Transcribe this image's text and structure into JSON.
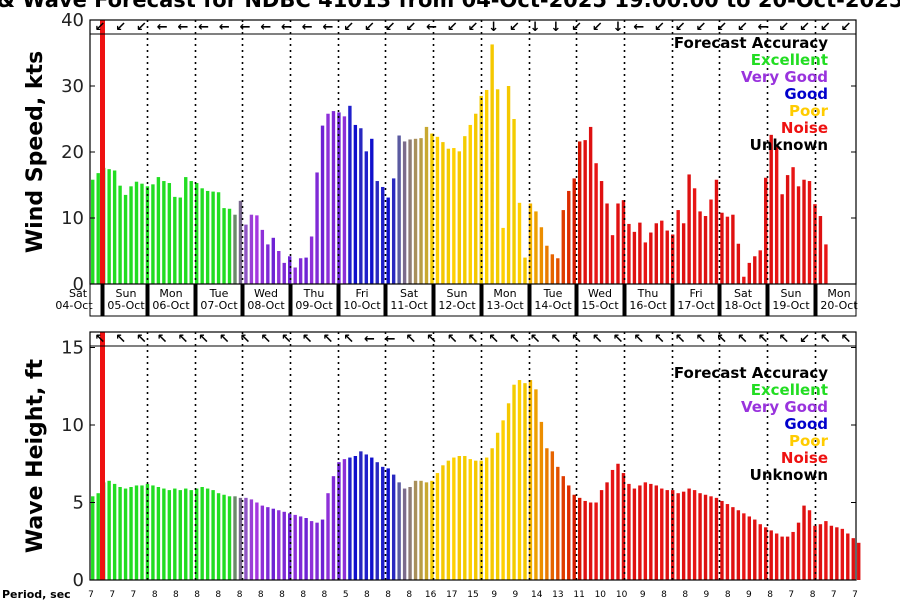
{
  "title": "& Wave Forecast for NDBC 41013 from 04-Oct-2025 19:00:00 to 20-Oct-2025",
  "accuracy_title": "Forecast Accuracy",
  "accuracy_legend": [
    {
      "label": "Excellent",
      "color": "#22dd22"
    },
    {
      "label": "Very Good",
      "color": "#9933dd"
    },
    {
      "label": "Good",
      "color": "#0000cc"
    },
    {
      "label": "Poor",
      "color": "#ffcc00"
    },
    {
      "label": "Noise",
      "color": "#ee1111"
    },
    {
      "label": "Unknown",
      "color": "#000000"
    }
  ],
  "period_label": "Period, sec",
  "now_label": "Sat",
  "chart_data": [
    {
      "type": "bar",
      "ylabel": "Wind Speed, kts",
      "ylim": [
        0,
        40
      ],
      "yticks": [
        0,
        10,
        20,
        30,
        40
      ],
      "days": [
        {
          "dow": "Sat",
          "date": "04-Oct"
        },
        {
          "dow": "Sun",
          "date": "05-Oct"
        },
        {
          "dow": "Mon",
          "date": "06-Oct"
        },
        {
          "dow": "Tue",
          "date": "07-Oct"
        },
        {
          "dow": "Wed",
          "date": "08-Oct"
        },
        {
          "dow": "Thu",
          "date": "09-Oct"
        },
        {
          "dow": "Fri",
          "date": "10-Oct"
        },
        {
          "dow": "Sat",
          "date": "11-Oct"
        },
        {
          "dow": "Sun",
          "date": "12-Oct"
        },
        {
          "dow": "Mon",
          "date": "13-Oct"
        },
        {
          "dow": "Tue",
          "date": "14-Oct"
        },
        {
          "dow": "Wed",
          "date": "15-Oct"
        },
        {
          "dow": "Thu",
          "date": "16-Oct"
        },
        {
          "dow": "Fri",
          "date": "17-Oct"
        },
        {
          "dow": "Sat",
          "date": "18-Oct"
        },
        {
          "dow": "Sun",
          "date": "19-Oct"
        },
        {
          "dow": "Mon",
          "date": "20-Oct"
        }
      ],
      "series": [
        {
          "name": "Wind Speed",
          "values": [
            15.8,
            16.8,
            17.6,
            17.4,
            17.2,
            14.9,
            13.5,
            14.8,
            15.5,
            15.2,
            14.8,
            15.1,
            16.2,
            15.6,
            15.3,
            13.2,
            13.1,
            16.2,
            15.6,
            15.3,
            14.5,
            14.1,
            14.0,
            13.9,
            11.5,
            11.4,
            10.5,
            12.6,
            9.0,
            10.5,
            10.4,
            8.2,
            6.0,
            7.0,
            5.0,
            3.2,
            4.2,
            2.5,
            3.9,
            4.0,
            7.2,
            16.9,
            24.0,
            25.8,
            26.2,
            26.0,
            25.4,
            27.0,
            24.1,
            23.6,
            20.1,
            22.0,
            15.6,
            14.7,
            13.1,
            16.0,
            22.5,
            21.6,
            21.9,
            22.0,
            22.1,
            23.8,
            22.8,
            22.3,
            21.5,
            20.5,
            20.6,
            20.1,
            22.4,
            24.1,
            25.8,
            28.5,
            29.4,
            36.3,
            29.5,
            8.5,
            30.0,
            25.0,
            12.3,
            4.0,
            12.2,
            11.0,
            8.6,
            5.8,
            4.5,
            3.9,
            11.2,
            14.1,
            16.0,
            21.6,
            21.8,
            23.8,
            18.3,
            15.6,
            12.2,
            7.4,
            12.2,
            12.7,
            9.1,
            7.9,
            9.3,
            6.3,
            7.8,
            9.2,
            9.6,
            8.1,
            7.5,
            11.2,
            9.2,
            16.6,
            14.5,
            11.0,
            10.3,
            12.8,
            15.8,
            10.8,
            10.2,
            10.5,
            6.1,
            1.1,
            3.2,
            4.2,
            5.1,
            16.1,
            22.6,
            20.8,
            13.6,
            16.5,
            17.7,
            14.8,
            15.8,
            15.6,
            12.1,
            10.3,
            6.0
          ]
        }
      ]
    },
    {
      "type": "bar",
      "ylabel": "Wave Height, ft",
      "ylim": [
        0,
        16
      ],
      "yticks": [
        0,
        5,
        10,
        15
      ],
      "series": [
        {
          "name": "Wave Height",
          "values": [
            5.4,
            5.6,
            6.3,
            6.4,
            6.2,
            6.0,
            5.9,
            6.0,
            6.1,
            6.1,
            6.2,
            6.1,
            6.0,
            5.9,
            5.8,
            5.9,
            5.8,
            5.9,
            5.8,
            5.9,
            6.0,
            5.9,
            5.8,
            5.6,
            5.5,
            5.4,
            5.4,
            5.3,
            5.3,
            5.2,
            5.0,
            4.8,
            4.7,
            4.6,
            4.5,
            4.4,
            4.3,
            4.2,
            4.1,
            4.0,
            3.8,
            3.7,
            3.9,
            5.6,
            6.7,
            7.6,
            7.8,
            7.9,
            8.0,
            8.3,
            8.1,
            7.9,
            7.6,
            7.3,
            7.2,
            6.8,
            6.3,
            5.9,
            6.0,
            6.4,
            6.4,
            6.3,
            6.4,
            6.9,
            7.4,
            7.7,
            7.9,
            8.0,
            8.0,
            7.8,
            7.7,
            7.7,
            7.9,
            8.5,
            9.5,
            10.3,
            11.4,
            12.6,
            12.9,
            12.7,
            12.9,
            12.3,
            10.2,
            8.5,
            8.3,
            7.3,
            6.7,
            6.1,
            5.5,
            5.3,
            5.1,
            5.0,
            5.0,
            5.8,
            6.3,
            7.1,
            7.5,
            6.9,
            6.2,
            5.9,
            6.1,
            6.3,
            6.2,
            6.1,
            5.9,
            5.8,
            5.8,
            5.6,
            5.7,
            5.9,
            5.8,
            5.6,
            5.5,
            5.4,
            5.3,
            5.1,
            4.9,
            4.7,
            4.5,
            4.3,
            4.1,
            3.9,
            3.6,
            3.4,
            3.2,
            3.0,
            2.8,
            2.8,
            3.1,
            3.7,
            4.8,
            4.5,
            3.5,
            3.6,
            3.8,
            3.5,
            3.4,
            3.3,
            3.0,
            2.7,
            2.4
          ]
        }
      ]
    }
  ],
  "quality_spans": [
    {
      "until": 26,
      "quality": "excellent"
    },
    {
      "until": 31,
      "quality": "very_good_transition"
    },
    {
      "until": 47,
      "quality": "very_good"
    },
    {
      "until": 56,
      "quality": "good"
    },
    {
      "until": 62,
      "quality": "good_transition"
    },
    {
      "until": 80,
      "quality": "poor"
    },
    {
      "until": 90,
      "quality": "poor_transition"
    },
    {
      "until": 140,
      "quality": "noise"
    }
  ],
  "periods": [
    "7",
    "7",
    "7",
    "8",
    "8",
    "8",
    "8",
    "8",
    "8",
    "8",
    "8",
    "8",
    "5",
    "8",
    "8",
    "8",
    "16",
    "17",
    "15",
    "9",
    "9",
    "14",
    "13",
    "11",
    "10",
    "10",
    "9",
    "8",
    "8",
    "9",
    "8",
    "9",
    "8",
    "7",
    "8",
    "7",
    "7"
  ],
  "wind_arrows": [
    "↙",
    "↙",
    "↙",
    "←",
    "←",
    "←",
    "←",
    "←",
    "←",
    "←",
    "←",
    "←",
    "↙",
    "↙",
    "↙",
    "↙",
    "←",
    "↙",
    "↙",
    "↓",
    "↙",
    "↓",
    "↓",
    "↙",
    "↙",
    "↓",
    "←",
    "↙",
    "↙",
    "↙",
    "↙",
    "↙",
    "←",
    "↙",
    "↙",
    "↙",
    "↙"
  ],
  "wave_arrows": [
    "↖",
    "↖",
    "↖",
    "↖",
    "↖",
    "↖",
    "↖",
    "↖",
    "↖",
    "↖",
    "↖",
    "↖",
    "↖",
    "←",
    "←",
    "↖",
    "↖",
    "↖",
    "↖",
    "↖",
    "↖",
    "↖",
    "↖",
    "↖",
    "↖",
    "↖",
    "↖",
    "↖",
    "↖",
    "↖",
    "↖",
    "↖",
    "↖",
    "↖",
    "↙",
    "↖",
    "↖"
  ]
}
